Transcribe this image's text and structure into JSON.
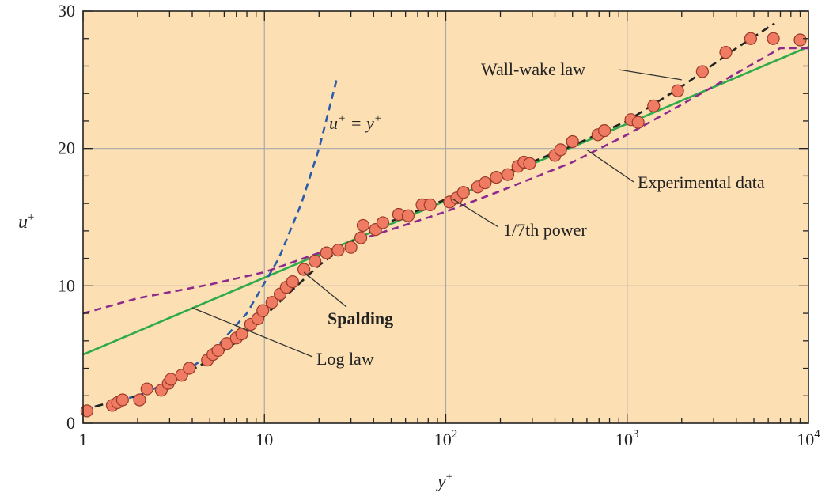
{
  "chart_data": {
    "type": "scatter",
    "x_scale": "log",
    "xlim": [
      1,
      10000
    ],
    "ylim": [
      0,
      30
    ],
    "grid": true,
    "colors": {
      "background": "#fce0b4",
      "grid": "#a8a8a8",
      "marker_fill": "#ef7b63",
      "marker_edge": "#9a3a28",
      "linear_law": "#2a5caa",
      "log_law": "#2eaa4a",
      "spalding": "#222222",
      "power_law": "#8e2a8e",
      "leader": "#333333"
    },
    "x_ticks": [
      {
        "value": 1,
        "label": "1",
        "sup": ""
      },
      {
        "value": 10,
        "label": "10",
        "sup": ""
      },
      {
        "value": 100,
        "label": "10",
        "sup": "2"
      },
      {
        "value": 1000,
        "label": "10",
        "sup": "3"
      },
      {
        "value": 10000,
        "label": "10",
        "sup": "4"
      }
    ],
    "y_ticks": [
      {
        "value": 0,
        "label": "0"
      },
      {
        "value": 10,
        "label": "10"
      },
      {
        "value": 20,
        "label": "20"
      },
      {
        "value": 30,
        "label": "30"
      }
    ],
    "xlabel": {
      "base": "y",
      "sup": "+"
    },
    "ylabel": {
      "base": "u",
      "sup": "+"
    },
    "series": [
      {
        "name": "u+ = y+",
        "style": "dashed",
        "x": [
          1,
          2,
          3,
          5,
          8,
          12,
          16,
          20,
          25
        ],
        "y": [
          1,
          2,
          3,
          5,
          8,
          12,
          16,
          20,
          25
        ]
      },
      {
        "name": "Log law",
        "style": "solid",
        "x": [
          1,
          10,
          100,
          1000,
          10000
        ],
        "y": [
          5.0,
          10.6,
          16.2,
          21.8,
          27.4
        ]
      },
      {
        "name": "Spalding",
        "style": "dashed",
        "x": [
          1,
          2,
          3,
          5,
          7,
          10,
          14,
          20,
          30,
          50,
          100,
          200,
          500,
          1000,
          2000,
          4000,
          6500
        ],
        "y": [
          1.0,
          2.0,
          3.0,
          4.6,
          5.9,
          7.8,
          9.6,
          11.5,
          13.2,
          14.7,
          16.3,
          18.1,
          20.2,
          22.0,
          24.5,
          27.3,
          29.1
        ]
      },
      {
        "name": "1/7th power",
        "style": "dashed",
        "x": [
          1,
          2,
          5,
          10,
          20,
          50,
          100,
          200,
          500,
          1000,
          2000,
          5000,
          7000,
          10000
        ],
        "y": [
          8.0,
          9.1,
          10.1,
          11.0,
          12.4,
          14.1,
          15.4,
          16.9,
          19.0,
          21.0,
          23.2,
          26.2,
          27.3,
          27.3
        ]
      },
      {
        "name": "Experimental data",
        "style": "markers",
        "x": [
          1.05,
          1.45,
          1.55,
          1.65,
          2.05,
          2.25,
          2.7,
          2.95,
          3.05,
          3.5,
          3.85,
          4.85,
          5.2,
          5.55,
          6.2,
          7.0,
          7.5,
          8.4,
          9.2,
          9.8,
          11,
          12.2,
          13.2,
          14.3,
          16.5,
          19,
          22,
          25.5,
          30,
          34,
          35,
          41,
          45,
          55,
          62,
          74,
          82,
          105,
          115,
          125,
          150,
          165,
          190,
          220,
          250,
          270,
          290,
          400,
          430,
          500,
          690,
          750,
          1050,
          1150,
          1400,
          1900,
          2600,
          3500,
          4800,
          6400,
          9000
        ],
        "y": [
          0.9,
          1.3,
          1.5,
          1.7,
          1.7,
          2.5,
          2.4,
          2.9,
          3.2,
          3.5,
          4.0,
          4.6,
          5.0,
          5.3,
          5.8,
          6.2,
          6.5,
          7.2,
          7.6,
          8.2,
          8.8,
          9.4,
          9.9,
          10.3,
          11.2,
          11.8,
          12.4,
          12.6,
          12.8,
          13.5,
          14.4,
          14.1,
          14.6,
          15.2,
          15.1,
          15.9,
          15.9,
          16.1,
          16.4,
          16.8,
          17.2,
          17.5,
          17.9,
          18.1,
          18.7,
          19.0,
          18.9,
          19.5,
          19.9,
          20.5,
          21.0,
          21.3,
          22.1,
          21.9,
          23.1,
          24.2,
          25.6,
          27.0,
          28.0,
          28.0,
          27.9
        ]
      }
    ],
    "annotations": {
      "linear": {
        "base": "u",
        "sup": "+",
        "mid": " = y",
        "sup2": "+"
      },
      "wall_wake": "Wall-wake law",
      "experimental": "Experimental data",
      "power": "1/7th power",
      "spalding": "Spalding",
      "log_law": "Log law"
    }
  }
}
